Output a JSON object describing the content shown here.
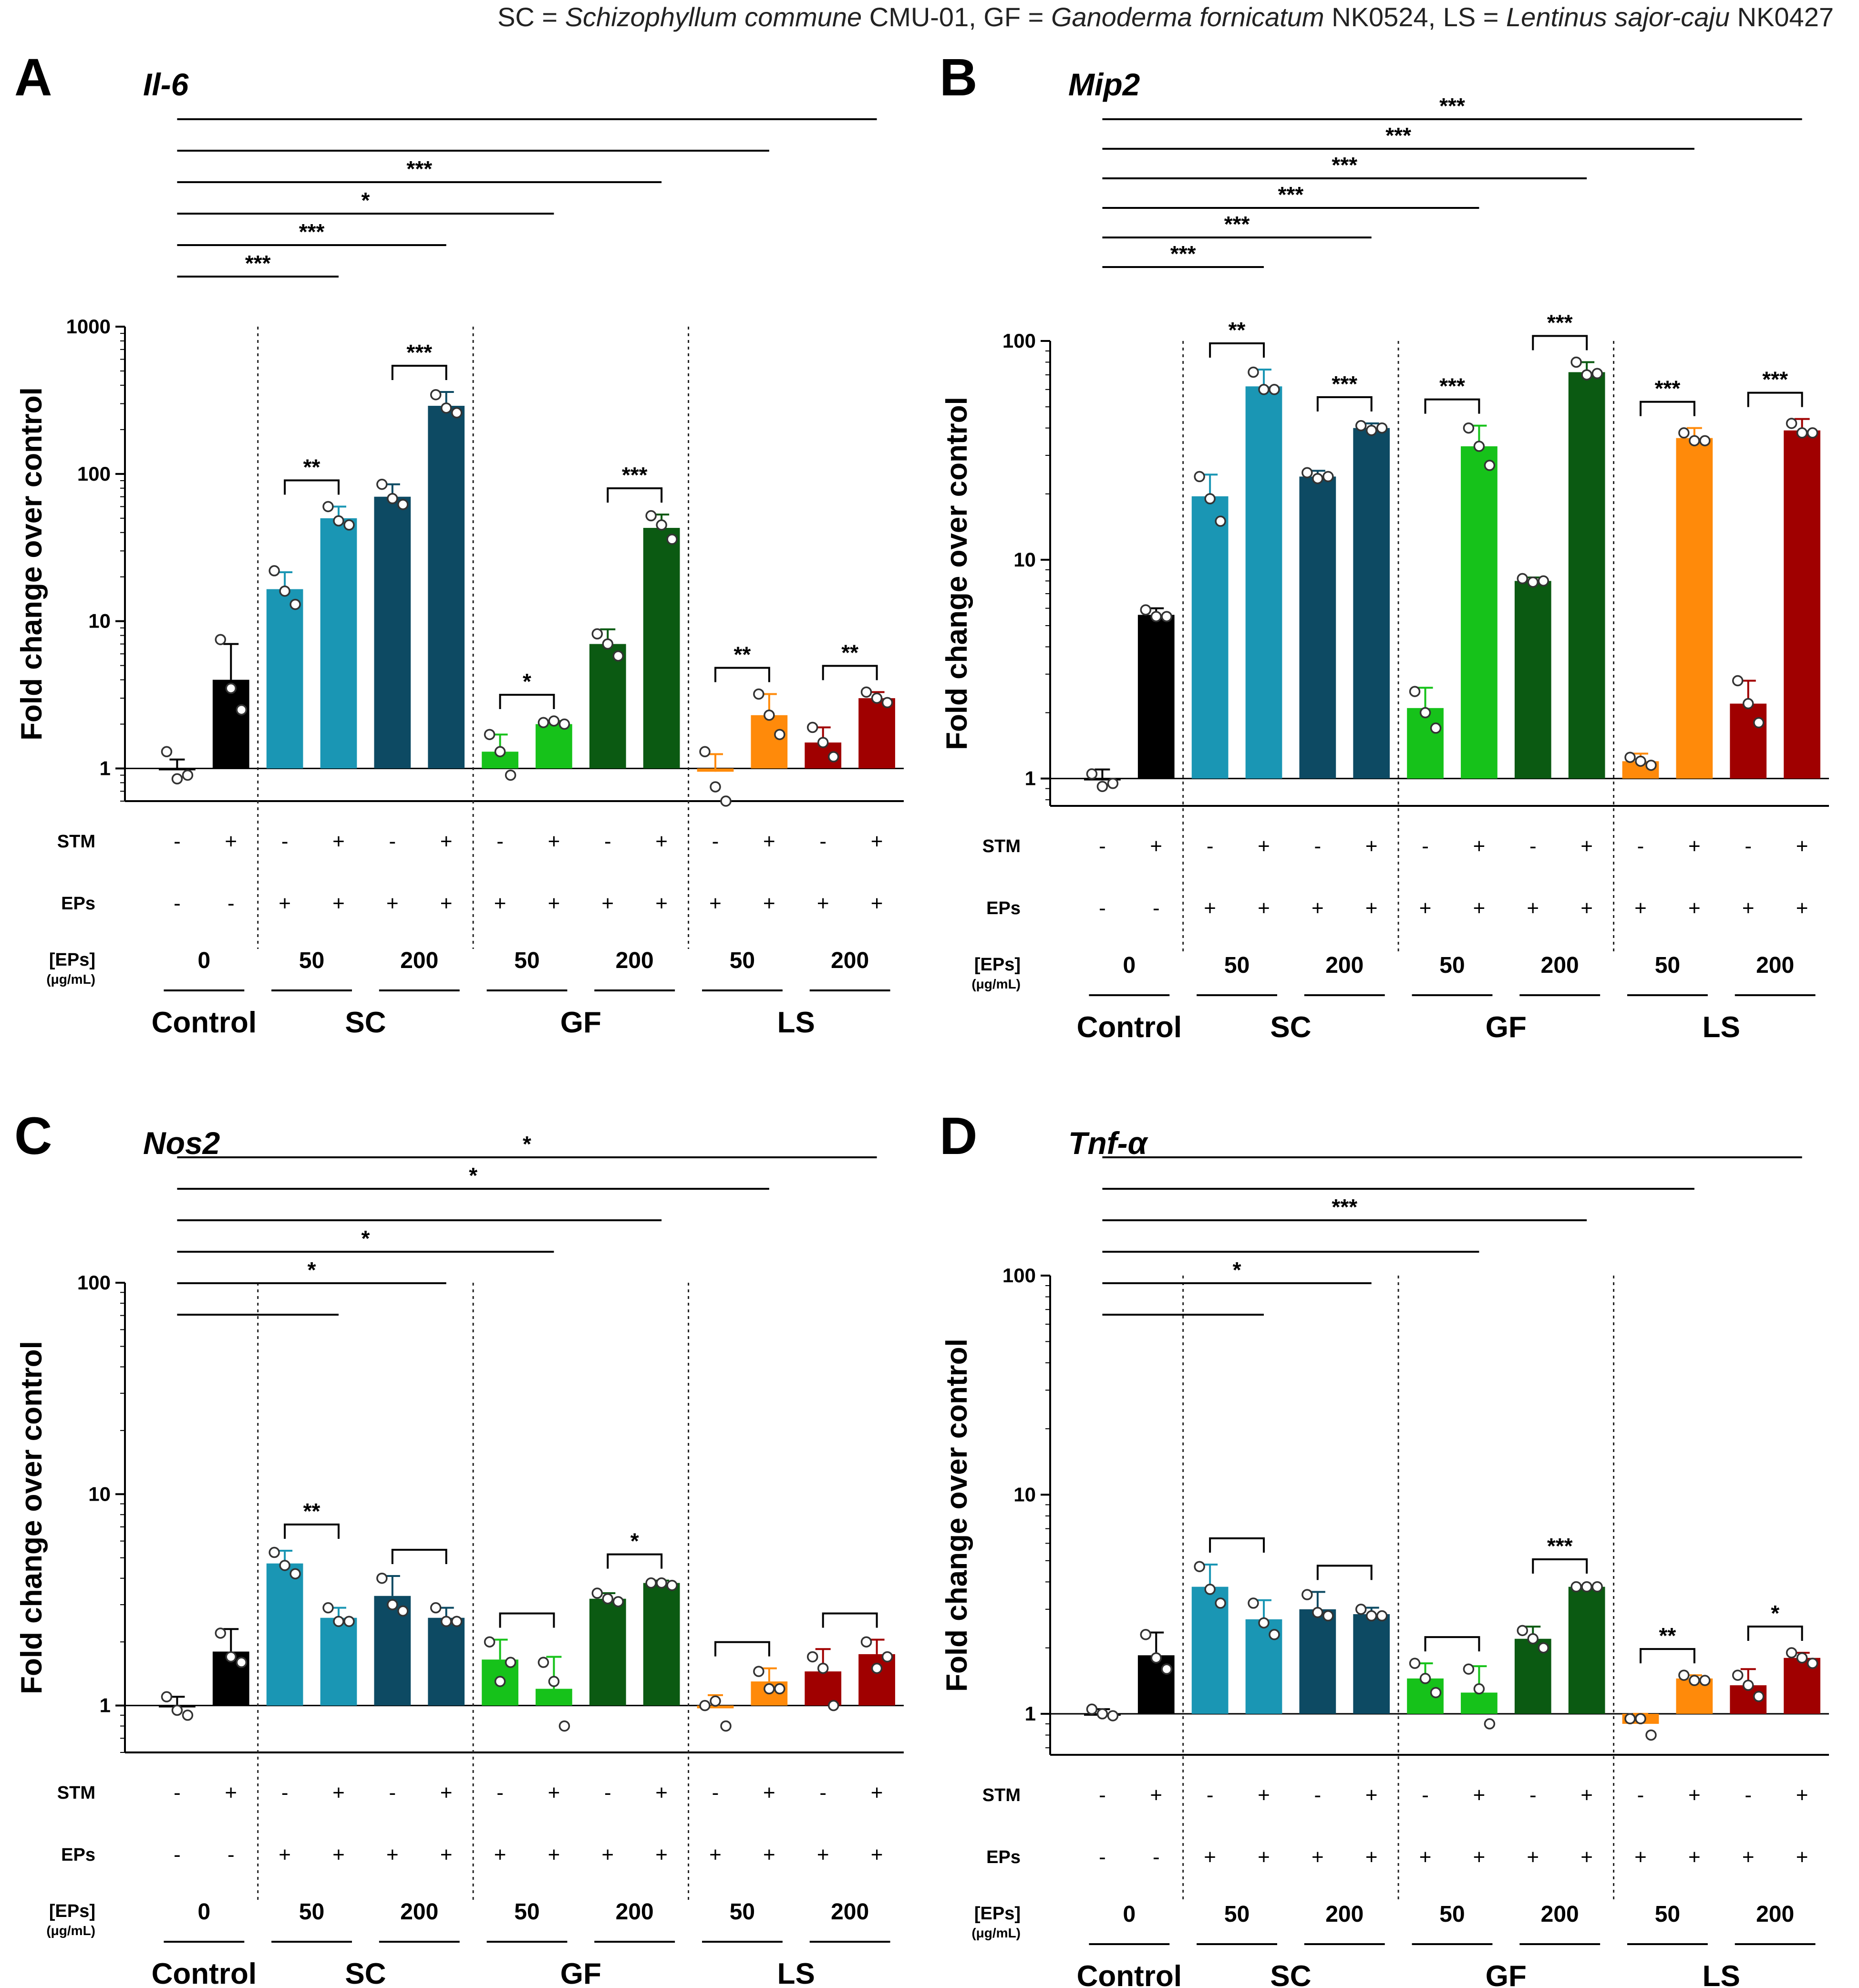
{
  "abbrev": {
    "sc_code": "SC",
    "sc_eq": " = ",
    "sc_name": "Schizophyllum commune",
    "sc_strain": " CMU-01, ",
    "gf_code": "GF",
    "gf_eq": " = ",
    "gf_name": "Ganoderma fornicatum",
    "gf_strain": " NK0524, ",
    "ls_code": "LS",
    "ls_eq": " = ",
    "ls_name": "Lentinus sajor-caju",
    "ls_strain": " NK0427"
  },
  "row_labels": {
    "stm": "STM",
    "eps": "EPs",
    "conc_line1": "[EPs]",
    "conc_line2": "(μg/mL)"
  },
  "conditions": {
    "stm": [
      "-",
      "+",
      "-",
      "+",
      "-",
      "+",
      "-",
      "+",
      "-",
      "+",
      "-",
      "+",
      "-",
      "+"
    ],
    "eps": [
      "-",
      "-",
      "+",
      "+",
      "+",
      "+",
      "+",
      "+",
      "+",
      "+",
      "+",
      "+",
      "+",
      "+"
    ],
    "concentrations": [
      "0",
      "50",
      "200",
      "50",
      "200",
      "50",
      "200"
    ],
    "groups": [
      "Control",
      "SC",
      "GF",
      "LS"
    ]
  },
  "colors": {
    "control": "#000000",
    "sc_50": "#1a96b4",
    "sc_200": "#0d4a63",
    "gf_light": "#16c21a",
    "gf_dark": "#0b5a12",
    "ls_light": "#ff8a0a",
    "ls_dark": "#a00000"
  },
  "chart_data": [
    {
      "panel": "A",
      "type": "bar",
      "title": "Il-6",
      "ylabel": "Fold change over control",
      "yscale": "log",
      "ylim": [
        0.6,
        1000
      ],
      "yticks": [
        "1",
        "10",
        "100",
        "1000"
      ],
      "values": [
        1.0,
        4.0,
        16.5,
        50,
        70,
        290,
        1.3,
        2.0,
        7.0,
        43,
        0.95,
        2.3,
        1.5,
        3.0
      ],
      "errors": [
        0.15,
        3.0,
        5.0,
        10,
        15,
        70,
        0.4,
        0.1,
        1.8,
        10,
        0.3,
        0.9,
        0.4,
        0.3
      ],
      "points": [
        [
          1.3,
          0.9,
          0.85
        ],
        [
          7.5,
          2.5,
          3.5
        ],
        [
          22,
          13,
          16
        ],
        [
          60,
          45,
          48
        ],
        [
          85,
          62,
          68
        ],
        [
          345,
          260,
          280
        ],
        [
          1.7,
          0.9,
          1.3
        ],
        [
          2.05,
          2.0,
          2.1
        ],
        [
          8.2,
          5.8,
          7.0
        ],
        [
          52,
          36,
          45
        ],
        [
          1.3,
          0.6,
          0.75
        ],
        [
          3.2,
          1.7,
          2.3
        ],
        [
          1.9,
          1.2,
          1.5
        ],
        [
          3.3,
          2.8,
          3.0
        ]
      ],
      "significance": [
        {
          "from": 1,
          "to": 14,
          "label": ""
        },
        {
          "from": 1,
          "to": 12,
          "label": ""
        },
        {
          "from": 1,
          "to": 10,
          "label": "***"
        },
        {
          "from": 1,
          "to": 8,
          "label": "*"
        },
        {
          "from": 1,
          "to": 6,
          "label": "***"
        },
        {
          "from": 1,
          "to": 4,
          "label": "***"
        },
        {
          "from": 3,
          "to": 4,
          "label": "**"
        },
        {
          "from": 5,
          "to": 6,
          "label": "***"
        },
        {
          "from": 7,
          "to": 8,
          "label": "*"
        },
        {
          "from": 9,
          "to": 10,
          "label": "***"
        },
        {
          "from": 11,
          "to": 12,
          "label": "**"
        },
        {
          "from": 13,
          "to": 14,
          "label": "**"
        }
      ]
    },
    {
      "panel": "B",
      "type": "bar",
      "title": "Mip2",
      "ylabel": "Fold change over control",
      "yscale": "log",
      "ylim": [
        0.75,
        100
      ],
      "yticks": [
        "1",
        "10",
        "100"
      ],
      "values": [
        1.0,
        5.6,
        19.5,
        62,
        24,
        40,
        2.1,
        33,
        8.0,
        72,
        1.2,
        36,
        2.2,
        39
      ],
      "errors": [
        0.1,
        0.4,
        5,
        12,
        1.5,
        2,
        0.5,
        8,
        0.3,
        8,
        0.1,
        4,
        0.6,
        5
      ],
      "points": [
        [
          1.05,
          0.95,
          0.92
        ],
        [
          5.9,
          5.5,
          5.5
        ],
        [
          24,
          15,
          19
        ],
        [
          72,
          60,
          60
        ],
        [
          25,
          24,
          23.5
        ],
        [
          41,
          40,
          39
        ],
        [
          2.5,
          1.7,
          2.0
        ],
        [
          40,
          27,
          33
        ],
        [
          8.2,
          8.0,
          7.9
        ],
        [
          80,
          71,
          70
        ],
        [
          1.25,
          1.15,
          1.2
        ],
        [
          38,
          35,
          35
        ],
        [
          2.8,
          1.8,
          2.2
        ],
        [
          42,
          38,
          38
        ]
      ],
      "significance": [
        {
          "from": 1,
          "to": 14,
          "label": "***"
        },
        {
          "from": 1,
          "to": 12,
          "label": "***"
        },
        {
          "from": 1,
          "to": 10,
          "label": "***"
        },
        {
          "from": 1,
          "to": 8,
          "label": "***"
        },
        {
          "from": 1,
          "to": 6,
          "label": "***"
        },
        {
          "from": 1,
          "to": 4,
          "label": "***"
        },
        {
          "from": 3,
          "to": 4,
          "label": "**"
        },
        {
          "from": 5,
          "to": 6,
          "label": "***"
        },
        {
          "from": 7,
          "to": 8,
          "label": "***"
        },
        {
          "from": 9,
          "to": 10,
          "label": "***"
        },
        {
          "from": 11,
          "to": 12,
          "label": "***"
        },
        {
          "from": 13,
          "to": 14,
          "label": "***"
        }
      ]
    },
    {
      "panel": "C",
      "type": "bar",
      "title": "Nos2",
      "ylabel": "Fold change over control",
      "yscale": "log",
      "ylim": [
        0.6,
        100
      ],
      "yticks": [
        "1",
        "10",
        "100"
      ],
      "values": [
        1.0,
        1.8,
        4.7,
        2.6,
        3.3,
        2.6,
        1.65,
        1.2,
        3.2,
        3.8,
        0.97,
        1.3,
        1.45,
        1.75
      ],
      "errors": [
        0.1,
        0.5,
        0.7,
        0.3,
        0.8,
        0.3,
        0.4,
        0.5,
        0.2,
        0.1,
        0.15,
        0.2,
        0.4,
        0.3
      ],
      "points": [
        [
          1.1,
          0.9,
          0.95
        ],
        [
          2.2,
          1.6,
          1.7
        ],
        [
          5.3,
          4.2,
          4.6
        ],
        [
          2.9,
          2.5,
          2.5
        ],
        [
          4.0,
          2.8,
          3.0
        ],
        [
          2.9,
          2.5,
          2.5
        ],
        [
          2.0,
          1.6,
          1.3
        ],
        [
          1.6,
          0.8,
          1.3
        ],
        [
          3.4,
          3.1,
          3.2
        ],
        [
          3.8,
          3.7,
          3.8
        ],
        [
          1.0,
          0.8,
          1.05
        ],
        [
          1.45,
          1.2,
          1.2
        ],
        [
          1.7,
          1.0,
          1.5
        ],
        [
          2.0,
          1.7,
          1.5
        ]
      ],
      "significance": [
        {
          "from": 1,
          "to": 14,
          "label": "*"
        },
        {
          "from": 1,
          "to": 12,
          "label": "*"
        },
        {
          "from": 1,
          "to": 10,
          "label": ""
        },
        {
          "from": 1,
          "to": 8,
          "label": "*"
        },
        {
          "from": 1,
          "to": 6,
          "label": "*"
        },
        {
          "from": 1,
          "to": 4,
          "label": ""
        },
        {
          "from": 3,
          "to": 4,
          "label": "**"
        },
        {
          "from": 5,
          "to": 6,
          "label": ""
        },
        {
          "from": 7,
          "to": 8,
          "label": ""
        },
        {
          "from": 9,
          "to": 10,
          "label": "*"
        },
        {
          "from": 11,
          "to": 12,
          "label": ""
        },
        {
          "from": 13,
          "to": 14,
          "label": ""
        }
      ]
    },
    {
      "panel": "D",
      "type": "bar",
      "title": "Tnf-α",
      "ylabel": "Fold change over control",
      "yscale": "log",
      "ylim": [
        0.65,
        100
      ],
      "yticks": [
        "1",
        "10",
        "100"
      ],
      "values": [
        1.0,
        1.85,
        3.8,
        2.7,
        3.0,
        2.85,
        1.45,
        1.25,
        2.2,
        3.8,
        0.9,
        1.45,
        1.35,
        1.8
      ],
      "errors": [
        0.05,
        0.5,
        1.0,
        0.6,
        0.6,
        0.2,
        0.25,
        0.4,
        0.3,
        0.05,
        0.1,
        0.05,
        0.25,
        0.1
      ],
      "points": [
        [
          1.05,
          0.98,
          1.0
        ],
        [
          2.3,
          1.6,
          1.8
        ],
        [
          4.7,
          3.2,
          3.7
        ],
        [
          3.2,
          2.3,
          2.6
        ],
        [
          3.5,
          2.8,
          2.9
        ],
        [
          3.0,
          2.8,
          2.8
        ],
        [
          1.7,
          1.25,
          1.45
        ],
        [
          1.6,
          0.9,
          1.3
        ],
        [
          2.4,
          2.0,
          2.2
        ],
        [
          3.8,
          3.8,
          3.8
        ],
        [
          0.95,
          0.8,
          0.95
        ],
        [
          1.5,
          1.42,
          1.42
        ],
        [
          1.5,
          1.2,
          1.35
        ],
        [
          1.9,
          1.7,
          1.8
        ]
      ],
      "significance": [
        {
          "from": 1,
          "to": 14,
          "label": ""
        },
        {
          "from": 1,
          "to": 12,
          "label": ""
        },
        {
          "from": 1,
          "to": 10,
          "label": "***"
        },
        {
          "from": 1,
          "to": 8,
          "label": ""
        },
        {
          "from": 1,
          "to": 6,
          "label": "*"
        },
        {
          "from": 1,
          "to": 4,
          "label": ""
        },
        {
          "from": 3,
          "to": 4,
          "label": ""
        },
        {
          "from": 5,
          "to": 6,
          "label": ""
        },
        {
          "from": 7,
          "to": 8,
          "label": ""
        },
        {
          "from": 9,
          "to": 10,
          "label": "***"
        },
        {
          "from": 11,
          "to": 12,
          "label": "**"
        },
        {
          "from": 13,
          "to": 14,
          "label": "*"
        }
      ]
    }
  ]
}
